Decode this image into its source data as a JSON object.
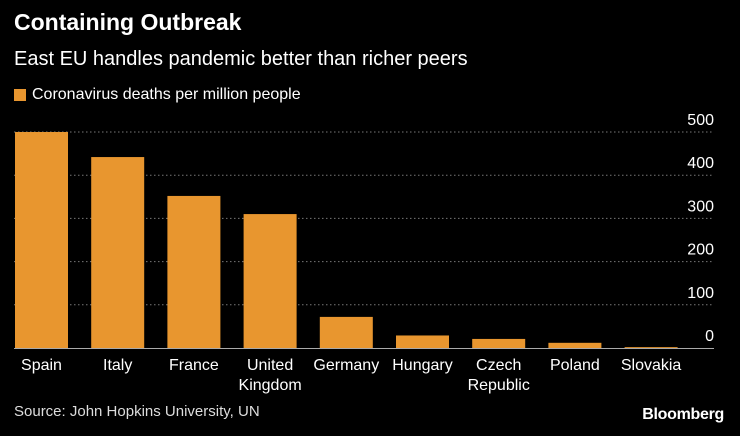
{
  "chart_data": {
    "type": "bar",
    "title": "Containing Outbreak",
    "subtitle": "East EU handles pandemic better than richer peers",
    "legend": [
      "Coronavirus deaths per million people"
    ],
    "categories": [
      [
        "Spain"
      ],
      [
        "Italy"
      ],
      [
        "France"
      ],
      [
        "United",
        "Kingdom"
      ],
      [
        "Germany"
      ],
      [
        "Hungary"
      ],
      [
        "Czech",
        "Republic"
      ],
      [
        "Poland"
      ],
      [
        "Slovakia"
      ]
    ],
    "series": [
      {
        "name": "Coronavirus deaths per million people",
        "values": [
          500,
          442,
          352,
          310,
          72,
          29,
          21,
          12,
          2
        ]
      }
    ],
    "ylim": [
      0,
      500
    ],
    "yticks": [
      0,
      100,
      200,
      300,
      400,
      500
    ],
    "ytick_labels": [
      "0",
      "100",
      "200",
      "300",
      "400",
      "500"
    ],
    "grid": true,
    "xlabel": "",
    "ylabel": "",
    "source": "Source: John Hopkins University, UN",
    "brand": "Bloomberg",
    "colors": {
      "bar": "#E8962F",
      "background": "#000000",
      "grid": "#777777",
      "axis": "#aaaaaa"
    }
  }
}
